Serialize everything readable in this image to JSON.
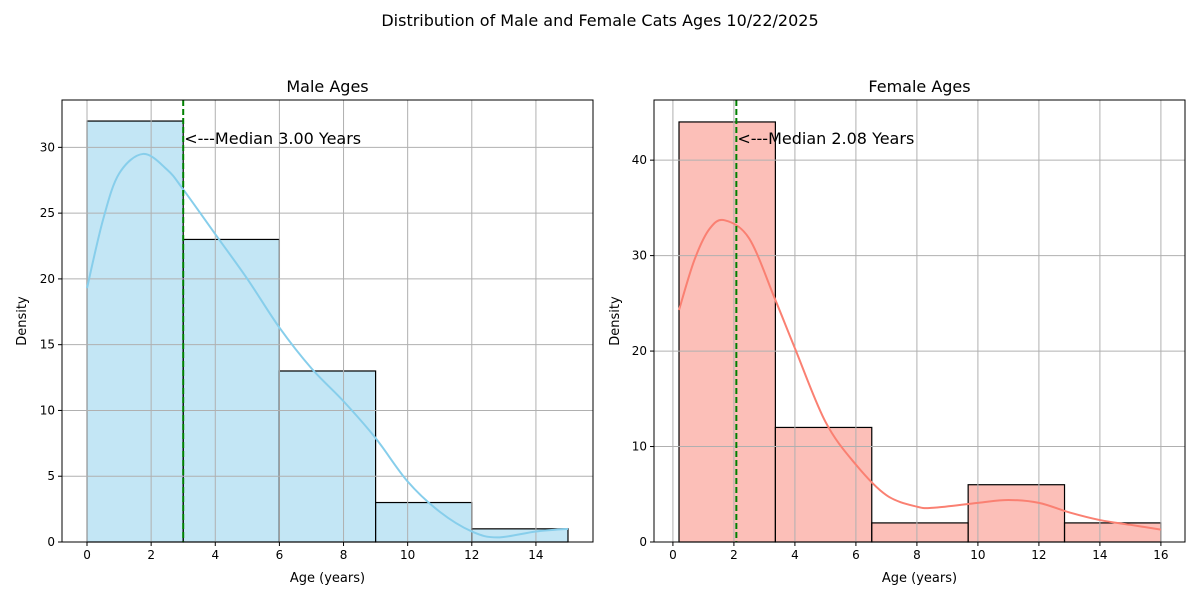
{
  "suptitle": "Distribution of Male and Female Cats Ages 10/22/2025",
  "chart_data": [
    {
      "type": "bar",
      "title": "Male Ages",
      "xlabel": "Age (years)",
      "ylabel": "Density",
      "xlim": [
        -0.78,
        15.78
      ],
      "ylim": [
        0,
        33.6
      ],
      "xticks": [
        0,
        2,
        4,
        6,
        8,
        10,
        12,
        14
      ],
      "yticks": [
        0,
        5,
        10,
        15,
        20,
        25,
        30
      ],
      "grid": true,
      "bin_edges": [
        0,
        3,
        6,
        9,
        12,
        15
      ],
      "values": [
        32,
        23,
        13,
        3,
        1
      ],
      "bar_color": "#87ceeb",
      "kde": {
        "color": "#87ceeb",
        "x": [
          0,
          0.5,
          1,
          1.75,
          2.5,
          3,
          4,
          5,
          6,
          7,
          8,
          9,
          10,
          11,
          12,
          12.8,
          14,
          15
        ],
        "y": [
          19.3,
          24.5,
          28,
          29.5,
          28.3,
          26.8,
          23.4,
          20,
          16.3,
          13.2,
          10.7,
          7.9,
          4.6,
          2.3,
          0.8,
          0.35,
          0.8,
          1.0
        ]
      },
      "median": 3.0,
      "median_label": "<---Median 3.00 Years",
      "median_color": "#008000"
    },
    {
      "type": "bar",
      "title": "Female Ages",
      "xlabel": "Age (years)",
      "ylabel": "Density",
      "xlim": [
        -0.62,
        16.79
      ],
      "ylim": [
        0,
        46.3
      ],
      "xticks": [
        0,
        2,
        4,
        6,
        8,
        10,
        12,
        14,
        16
      ],
      "yticks": [
        0,
        10,
        20,
        30,
        40
      ],
      "grid": true,
      "bin_edges": [
        0.2,
        3.36,
        6.52,
        9.68,
        12.84,
        16
      ],
      "values": [
        44,
        12,
        2,
        6,
        2
      ],
      "bar_color": "#fa8072",
      "kde": {
        "color": "#fa8072",
        "x": [
          0.2,
          0.7,
          1.2,
          1.7,
          2.5,
          3.34,
          4,
          5,
          6,
          7,
          8,
          8.6,
          10,
          11,
          12,
          13,
          14,
          15,
          16
        ],
        "y": [
          24.3,
          29.5,
          32.8,
          33.7,
          31.8,
          25.5,
          20.3,
          12.6,
          8.1,
          4.9,
          3.7,
          3.6,
          4.1,
          4.4,
          4.1,
          3.1,
          2.3,
          1.8,
          1.3
        ]
      },
      "median": 2.08,
      "median_label": "<---Median 2.08 Years",
      "median_color": "#008000"
    }
  ]
}
